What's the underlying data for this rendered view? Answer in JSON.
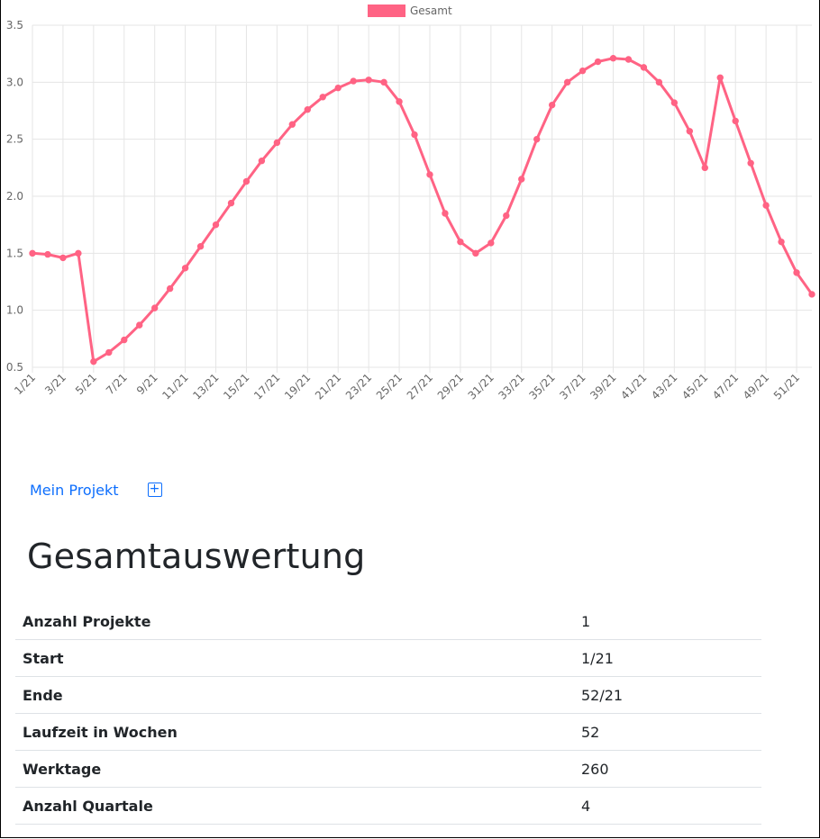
{
  "chart_data": {
    "type": "line",
    "legend": {
      "position": "top",
      "entries": [
        "Gesamt"
      ]
    },
    "series": [
      {
        "name": "Gesamt",
        "color": "#ff6384",
        "values": [
          1.5,
          1.49,
          1.46,
          1.5,
          0.55,
          0.63,
          0.74,
          0.87,
          1.02,
          1.19,
          1.37,
          1.56,
          1.75,
          1.94,
          2.13,
          2.31,
          2.47,
          2.63,
          2.76,
          2.87,
          2.95,
          3.01,
          3.02,
          3.0,
          2.83,
          2.54,
          2.19,
          1.85,
          1.6,
          1.5,
          1.59,
          1.83,
          2.15,
          2.5,
          2.8,
          3.0,
          3.1,
          3.18,
          3.21,
          3.2,
          3.13,
          3.0,
          2.82,
          2.57,
          2.25,
          3.04,
          2.66,
          2.29,
          1.92,
          1.6,
          1.33,
          1.14
        ]
      }
    ],
    "x_tick_labels": [
      "1/21",
      "3/21",
      "5/21",
      "7/21",
      "9/21",
      "11/21",
      "13/21",
      "15/21",
      "17/21",
      "19/21",
      "21/21",
      "23/21",
      "25/21",
      "27/21",
      "29/21",
      "31/21",
      "33/21",
      "35/21",
      "37/21",
      "39/21",
      "41/21",
      "43/21",
      "45/21",
      "47/21",
      "49/21",
      "51/21"
    ],
    "y_ticks": [
      "0.5",
      "1.0",
      "1.5",
      "2.0",
      "2.5",
      "3.0",
      "3.5"
    ],
    "ylim": [
      0.5,
      3.5
    ],
    "grid": true
  },
  "project": {
    "link_label": "Mein Projekt",
    "add_label": "+"
  },
  "summary": {
    "title": "Gesamtauswertung",
    "rows": [
      {
        "label": "Anzahl Projekte",
        "value": "1"
      },
      {
        "label": "Start",
        "value": "1/21"
      },
      {
        "label": "Ende",
        "value": "52/21"
      },
      {
        "label": "Laufzeit in Wochen",
        "value": "52"
      },
      {
        "label": "Werktage",
        "value": "260"
      },
      {
        "label": "Anzahl Quartale",
        "value": "4"
      }
    ]
  }
}
